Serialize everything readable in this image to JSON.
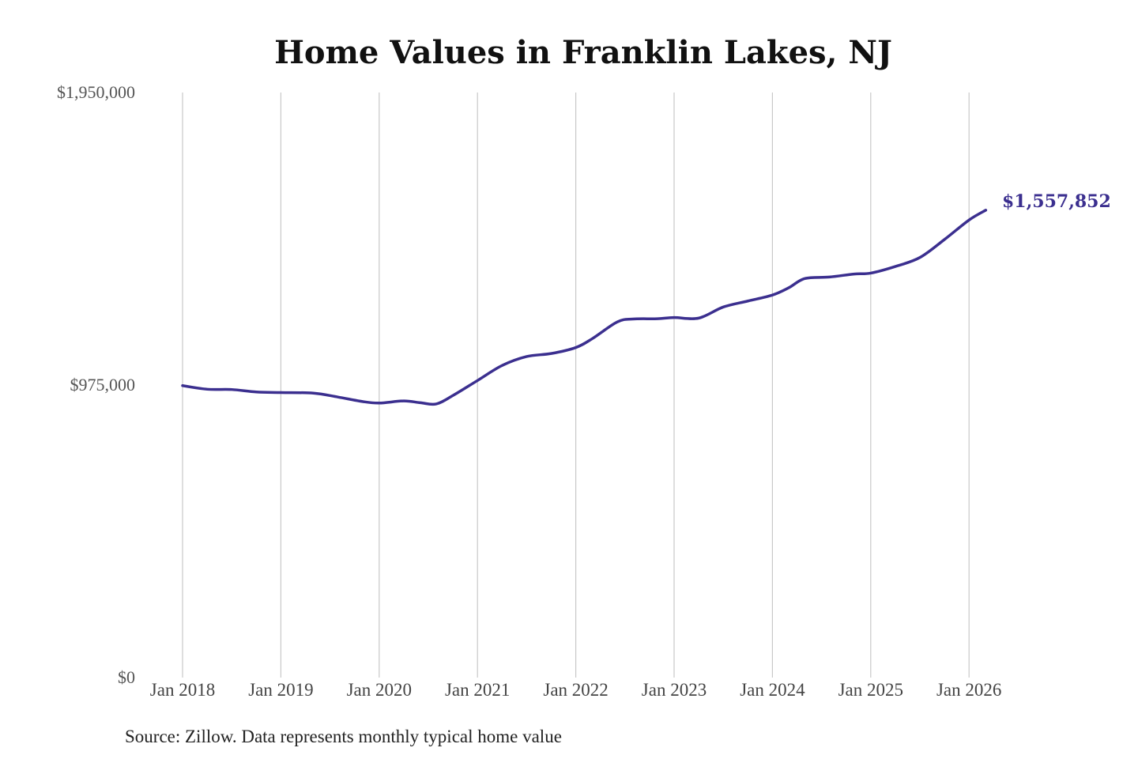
{
  "chart_data": {
    "type": "line",
    "title": "Home Values in Franklin Lakes, NJ",
    "xlabel": "",
    "ylabel": "",
    "ylim": [
      0,
      1950000
    ],
    "y_ticks": [
      {
        "value": 0,
        "label": "$0"
      },
      {
        "value": 975000,
        "label": "$975,000"
      },
      {
        "value": 1950000,
        "label": "$1,950,000"
      }
    ],
    "x_ticks": [
      {
        "value": 2018.0,
        "label": "Jan 2018"
      },
      {
        "value": 2019.0,
        "label": "Jan 2019"
      },
      {
        "value": 2020.0,
        "label": "Jan 2020"
      },
      {
        "value": 2021.0,
        "label": "Jan 2021"
      },
      {
        "value": 2022.0,
        "label": "Jan 2022"
      },
      {
        "value": 2023.0,
        "label": "Jan 2023"
      },
      {
        "value": 2024.0,
        "label": "Jan 2024"
      },
      {
        "value": 2025.0,
        "label": "Jan 2025"
      },
      {
        "value": 2026.0,
        "label": "Jan 2026"
      }
    ],
    "xlim": [
      2018.0,
      2026.17
    ],
    "grid": "vertical",
    "color": "#3b2f8f",
    "end_label": "$1,557,852",
    "series": [
      {
        "values": [
          [
            2018.0,
            973000
          ],
          [
            2018.25,
            961000
          ],
          [
            2018.5,
            960000
          ],
          [
            2018.75,
            952000
          ],
          [
            2019.0,
            950000
          ],
          [
            2019.33,
            948000
          ],
          [
            2019.58,
            935000
          ],
          [
            2019.83,
            920000
          ],
          [
            2020.0,
            915000
          ],
          [
            2020.25,
            922000
          ],
          [
            2020.42,
            916000
          ],
          [
            2020.58,
            912000
          ],
          [
            2020.75,
            940000
          ],
          [
            2021.0,
            990000
          ],
          [
            2021.25,
            1040000
          ],
          [
            2021.5,
            1070000
          ],
          [
            2021.75,
            1080000
          ],
          [
            2022.0,
            1100000
          ],
          [
            2022.17,
            1130000
          ],
          [
            2022.42,
            1185000
          ],
          [
            2022.58,
            1195000
          ],
          [
            2022.83,
            1196000
          ],
          [
            2023.0,
            1200000
          ],
          [
            2023.25,
            1198000
          ],
          [
            2023.5,
            1235000
          ],
          [
            2023.75,
            1255000
          ],
          [
            2024.0,
            1275000
          ],
          [
            2024.17,
            1300000
          ],
          [
            2024.33,
            1330000
          ],
          [
            2024.58,
            1335000
          ],
          [
            2024.83,
            1345000
          ],
          [
            2025.0,
            1348000
          ],
          [
            2025.25,
            1370000
          ],
          [
            2025.5,
            1400000
          ],
          [
            2025.75,
            1460000
          ],
          [
            2026.0,
            1525000
          ],
          [
            2026.17,
            1557852
          ]
        ]
      }
    ]
  },
  "source_note": "Source: Zillow. Data represents monthly typical home value"
}
